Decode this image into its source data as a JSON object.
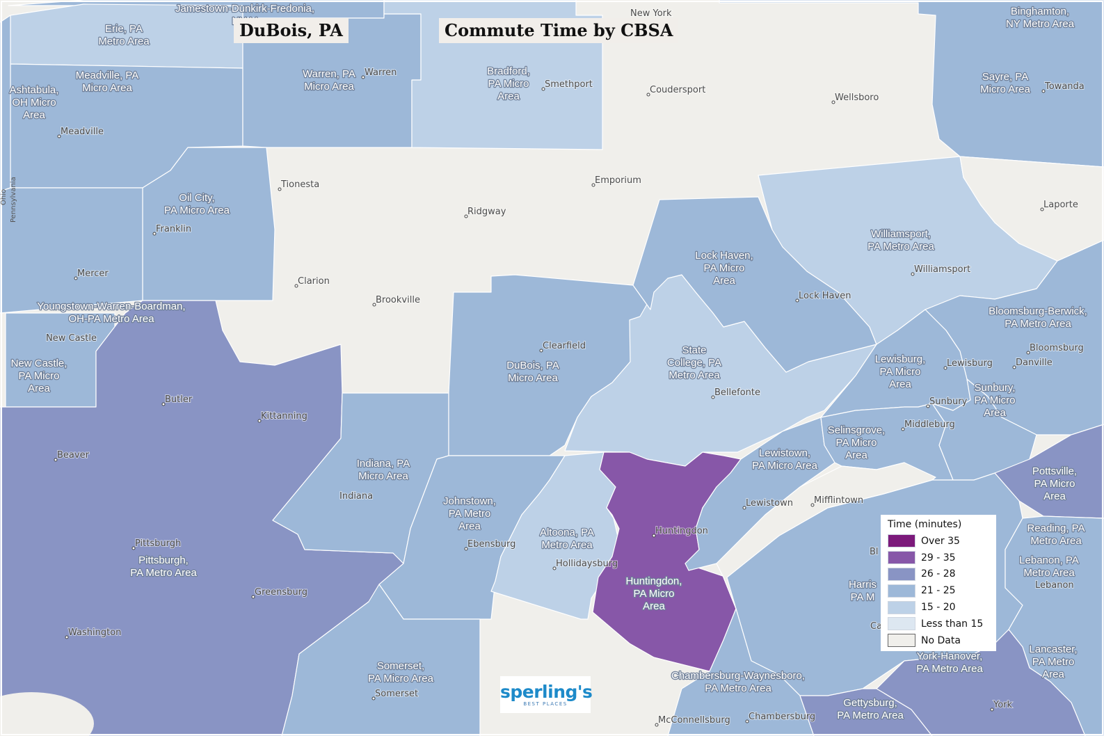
{
  "titles": {
    "place": "DuBois, PA",
    "map": "Commute Time by CBSA"
  },
  "legend": {
    "title": "Time (minutes)",
    "items": [
      {
        "label": "Over 35",
        "color": "#7c1a7b"
      },
      {
        "label": "29 - 35",
        "color": "#8757a8"
      },
      {
        "label": "26 - 28",
        "color": "#8994c4"
      },
      {
        "label": "21 - 25",
        "color": "#9db8d8"
      },
      {
        "label": "15 - 20",
        "color": "#bdd1e7"
      },
      {
        "label": "Less than 15",
        "color": "#dde7f1"
      },
      {
        "label": "No Data",
        "color": "#f0efeb"
      }
    ]
  },
  "logo": {
    "main": "sperling's",
    "sub": "BEST PLACES"
  },
  "area_labels": {
    "jamestown": [
      "Jamestown-Dunkirk-Fredonia,",
      "NY M"
    ],
    "erie": [
      "Erie, PA",
      "Metro Area"
    ],
    "meadville": [
      "Meadville, PA",
      "Micro Area"
    ],
    "ashtabula": [
      "Ashtabula,",
      "OH Micro",
      "Area"
    ],
    "warren": [
      "Warren, PA",
      "Micro Area"
    ],
    "bradford": [
      "Bradford,",
      "PA Micro",
      "Area"
    ],
    "binghamton": [
      "Binghamton,",
      "NY Metro Area"
    ],
    "sayre": [
      "Sayre, PA",
      "Micro Area"
    ],
    "oil_city": [
      "Oil City,",
      "PA Micro Area"
    ],
    "lock_haven": [
      "Lock Haven,",
      "PA Micro",
      "Area"
    ],
    "williamsport": [
      "Williamsport,",
      "PA Metro Area"
    ],
    "youngstown": [
      "Youngstown-Warren-Boardman,",
      "OH-PA Metro Area"
    ],
    "new_castle": [
      "New Castle,",
      "PA Micro",
      "Area"
    ],
    "dubois": [
      "DuBois, PA",
      "Micro Area"
    ],
    "state_college": [
      "State",
      "College, PA",
      "Metro Area"
    ],
    "bloomsburg": [
      "Bloomsburg-Berwick,",
      "PA Metro Area"
    ],
    "lewisburg": [
      "Lewisburg,",
      "PA Micro",
      "Area"
    ],
    "sunbury": [
      "Sunbury,",
      "PA Micro",
      "Area"
    ],
    "selinsgrove": [
      "Selinsgrove,",
      "PA Micro",
      "Area"
    ],
    "lewistown": [
      "Lewistown,",
      "PA Micro Area"
    ],
    "indiana": [
      "Indiana, PA",
      "Micro Area"
    ],
    "johnstown": [
      "Johnstown,",
      "PA Metro",
      "Area"
    ],
    "altoona": [
      "Altoona, PA",
      "Metro Area"
    ],
    "pottsville": [
      "Pottsville,",
      "PA Micro",
      "Area"
    ],
    "reading": [
      "Reading, PA",
      "Metro Area"
    ],
    "lebanon": [
      "Lebanon, PA",
      "Metro Area"
    ],
    "pittsburgh": [
      "Pittsburgh,",
      "PA Metro Area"
    ],
    "huntingdon": [
      "Huntingdon,",
      "PA Micro",
      "Area"
    ],
    "harrisburg": [
      "Harris",
      "PA M"
    ],
    "somerset": [
      "Somerset,",
      "PA Micro Area"
    ],
    "chambersburg": [
      "Chambersburg-Waynesboro,",
      "PA Metro Area"
    ],
    "york": [
      "York-Hanover,",
      "PA Metro Area"
    ],
    "gettysburg": [
      "Gettysburg,",
      "PA Metro Area"
    ],
    "lancaster": [
      "Lancaster,",
      "PA Metro",
      "Area"
    ]
  },
  "towns": {
    "new_york": "New York",
    "vania": "vania",
    "warren": "Warren",
    "smethport": "Smethport",
    "coudersport": "Coudersport",
    "wellsboro": "Wellsboro",
    "towanda": "Towanda",
    "meadville": "Meadville",
    "tionesta": "Tionesta",
    "emporium": "Emporium",
    "ridgway": "Ridgway",
    "laporte": "Laporte",
    "franklin": "Franklin",
    "mercer": "Mercer",
    "williamsport": "Williamsport",
    "clarion": "Clarion",
    "brookville": "Brookville",
    "lock_haven": "Lock Haven",
    "new_castle": "New Castle",
    "clearfield": "Clearfield",
    "bloomsburg": "Bloomsburg",
    "danville": "Danville",
    "lewisburg": "Lewisburg",
    "bellefonte": "Bellefonte",
    "butler": "Butler",
    "kittanning": "Kittanning",
    "sunbury": "Sunbury",
    "middleburg": "Middleburg",
    "beaver": "Beaver",
    "lewistown": "Lewistown",
    "mifflintown": "Mifflintown",
    "indiana": "Indiana",
    "huntingdon": "Huntingdon",
    "ebensburg": "Ebensburg",
    "pittsburgh": "Pittsburgh",
    "hollidaysburg": "Hollidaysburg",
    "greensburg": "Greensburg",
    "lebanon": "Lebanon",
    "washington": "Washington",
    "somerset": "Somerset",
    "york": "York",
    "mcconnellsburg": "McConnellsburg",
    "chambersburg": "Chambersburg",
    "bl": "Bl",
    "ca": "Ca",
    "ohio": "Ohio",
    "pennsylvania": "Pennsylvania"
  }
}
